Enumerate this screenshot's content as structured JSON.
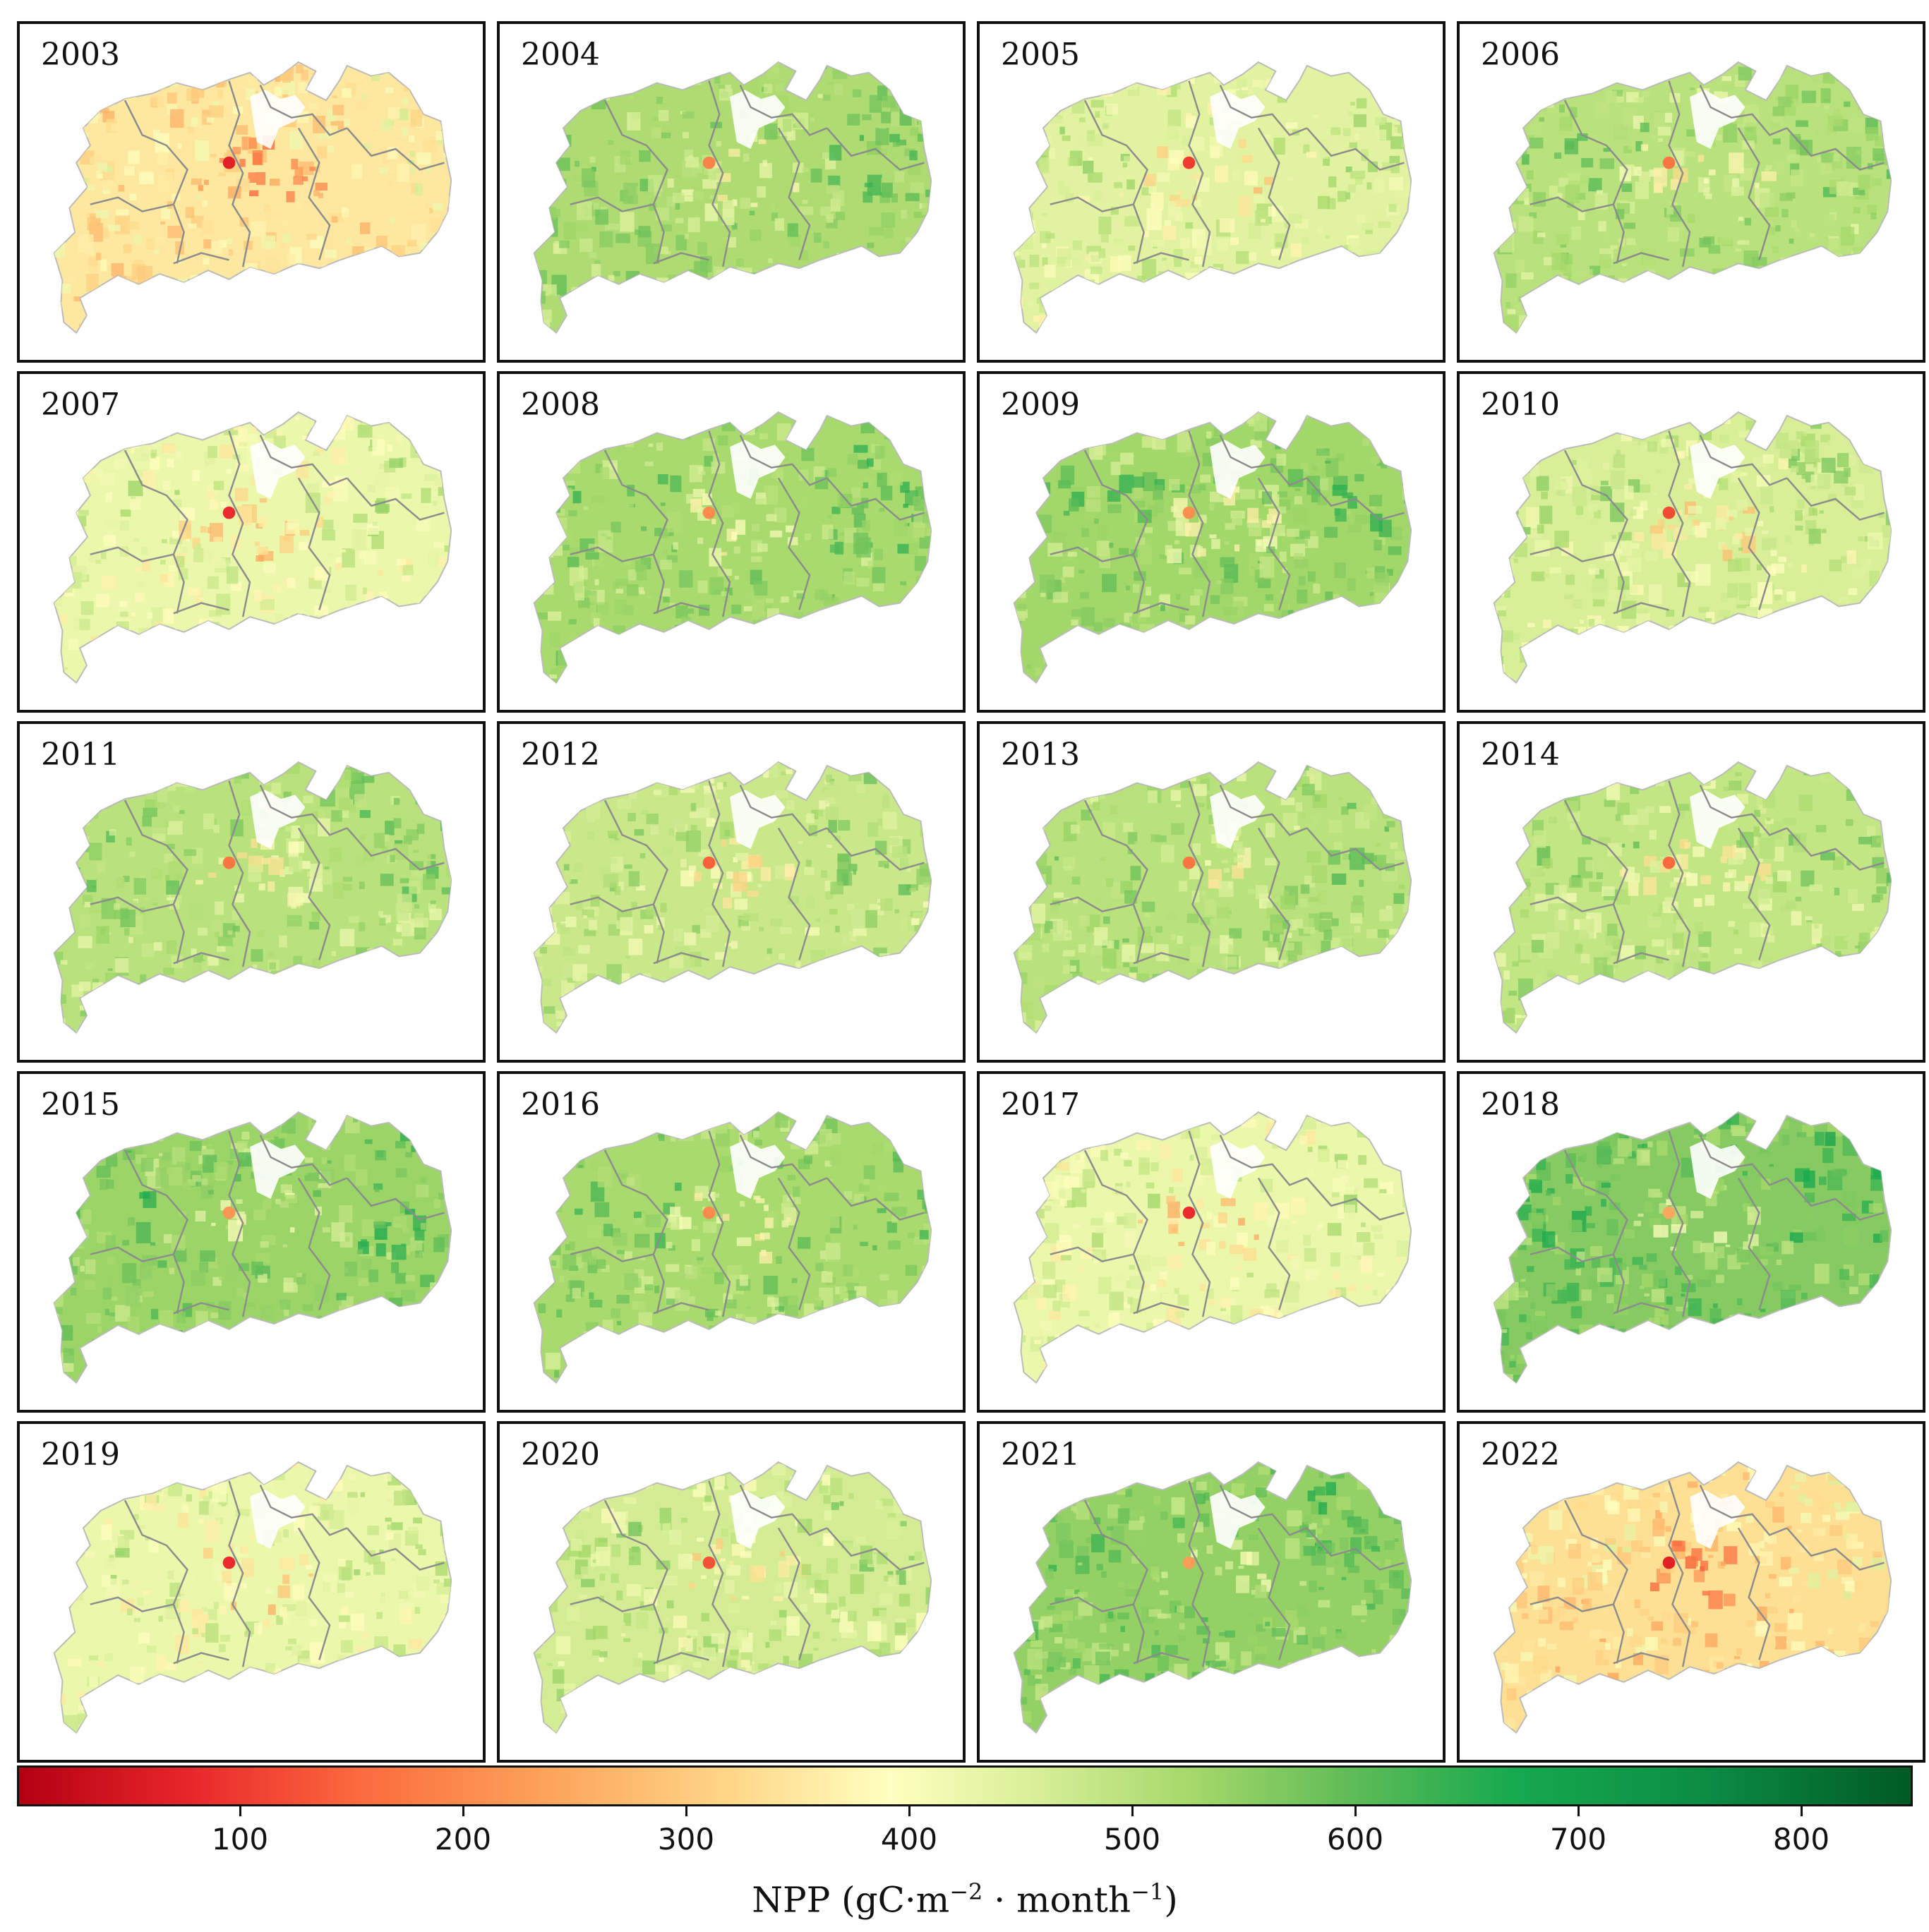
{
  "panels": [
    {
      "year": "2003",
      "level": 0.4
    },
    {
      "year": "2004",
      "level": 0.62
    },
    {
      "year": "2005",
      "level": 0.52
    },
    {
      "year": "2006",
      "level": 0.6
    },
    {
      "year": "2007",
      "level": 0.5
    },
    {
      "year": "2008",
      "level": 0.63
    },
    {
      "year": "2009",
      "level": 0.64
    },
    {
      "year": "2010",
      "level": 0.54
    },
    {
      "year": "2011",
      "level": 0.6
    },
    {
      "year": "2012",
      "level": 0.57
    },
    {
      "year": "2013",
      "level": 0.6
    },
    {
      "year": "2014",
      "level": 0.58
    },
    {
      "year": "2015",
      "level": 0.65
    },
    {
      "year": "2016",
      "level": 0.63
    },
    {
      "year": "2017",
      "level": 0.5
    },
    {
      "year": "2018",
      "level": 0.68
    },
    {
      "year": "2019",
      "level": 0.5
    },
    {
      "year": "2020",
      "level": 0.55
    },
    {
      "year": "2021",
      "level": 0.66
    },
    {
      "year": "2022",
      "level": 0.38
    }
  ],
  "colorbar": {
    "min": 0,
    "max": 850,
    "ticks": [
      "100",
      "200",
      "300",
      "400",
      "500",
      "600",
      "700",
      "800"
    ],
    "label_main": "NPP (gC·m",
    "label_exp1": "−2",
    "label_mid": " · month",
    "label_exp2": "−1",
    "label_end": ")",
    "colors": [
      "#b30012",
      "#e8262a",
      "#fb6a3d",
      "#fca45b",
      "#fed98a",
      "#ffffbf",
      "#d6ee96",
      "#a5d86a",
      "#62bd57",
      "#16a94e",
      "#0b8d44",
      "#005a24"
    ]
  }
}
